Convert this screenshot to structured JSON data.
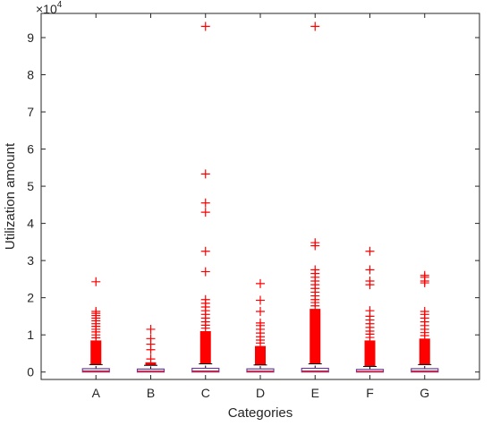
{
  "chart_data": {
    "type": "box",
    "xlabel": "Categories",
    "ylabel": "Utilization amount",
    "exponent_label": "×10",
    "exponent_power": "4",
    "categories": [
      "A",
      "B",
      "C",
      "D",
      "E",
      "F",
      "G"
    ],
    "y_ticks": [
      0,
      10000,
      20000,
      30000,
      40000,
      50000,
      60000,
      70000,
      80000,
      90000
    ],
    "y_tick_labels": [
      "0",
      "1",
      "2",
      "3",
      "4",
      "5",
      "6",
      "7",
      "8",
      "9"
    ],
    "ylim": [
      -2000,
      96500
    ],
    "grid": false,
    "box_color": "#6a3d9a",
    "median_color": "#ff0000",
    "outlier_color": "#ff0000",
    "boxes": [
      {
        "category": "A",
        "q1": 0,
        "median": 300,
        "q3": 900,
        "whisker_low": 0,
        "whisker_high": 2000,
        "dense_outliers": [
          2000,
          8500
        ],
        "outliers": [
          9200,
          10000,
          10800,
          11500,
          12300,
          13000,
          13800,
          14500,
          15200,
          15800,
          16300,
          24300
        ]
      },
      {
        "category": "B",
        "q1": 0,
        "median": 250,
        "q3": 800,
        "whisker_low": 0,
        "whisker_high": 1800,
        "dense_outliers": [
          1800,
          2600
        ],
        "outliers": [
          3500,
          6000,
          7500,
          9000,
          11500
        ]
      },
      {
        "category": "C",
        "q1": 0,
        "median": 300,
        "q3": 1000,
        "whisker_low": 0,
        "whisker_high": 2200,
        "dense_outliers": [
          2200,
          11000
        ],
        "outliers": [
          11800,
          12600,
          13500,
          14500,
          15500,
          16500,
          17500,
          18500,
          19500,
          27000,
          32500,
          43000,
          45500,
          53300,
          93000
        ]
      },
      {
        "category": "D",
        "q1": 0,
        "median": 250,
        "q3": 850,
        "whisker_low": 0,
        "whisker_high": 1900,
        "dense_outliers": [
          1900,
          7000
        ],
        "outliers": [
          7800,
          8600,
          9500,
          10500,
          11500,
          12500,
          13200,
          16300,
          19300,
          23800
        ]
      },
      {
        "category": "E",
        "q1": 0,
        "median": 300,
        "q3": 1000,
        "whisker_low": 0,
        "whisker_high": 2200,
        "dense_outliers": [
          2200,
          17000
        ],
        "outliers": [
          17800,
          18700,
          19500,
          20500,
          21500,
          22500,
          23500,
          24500,
          25500,
          26500,
          27500,
          34000,
          34800,
          93000
        ]
      },
      {
        "category": "F",
        "q1": 0,
        "median": 200,
        "q3": 700,
        "whisker_low": 0,
        "whisker_high": 1500,
        "dense_outliers": [
          1500,
          8500
        ],
        "outliers": [
          9300,
          10200,
          11000,
          12000,
          13000,
          14000,
          15000,
          16500,
          23500,
          24500,
          27500,
          32500
        ]
      },
      {
        "category": "G",
        "q1": 0,
        "median": 300,
        "q3": 900,
        "whisker_low": 0,
        "whisker_high": 2000,
        "dense_outliers": [
          2000,
          9000
        ],
        "outliers": [
          9800,
          10600,
          11500,
          12500,
          13500,
          14500,
          15500,
          16300,
          24000,
          24500,
          25500,
          26000
        ]
      }
    ]
  }
}
